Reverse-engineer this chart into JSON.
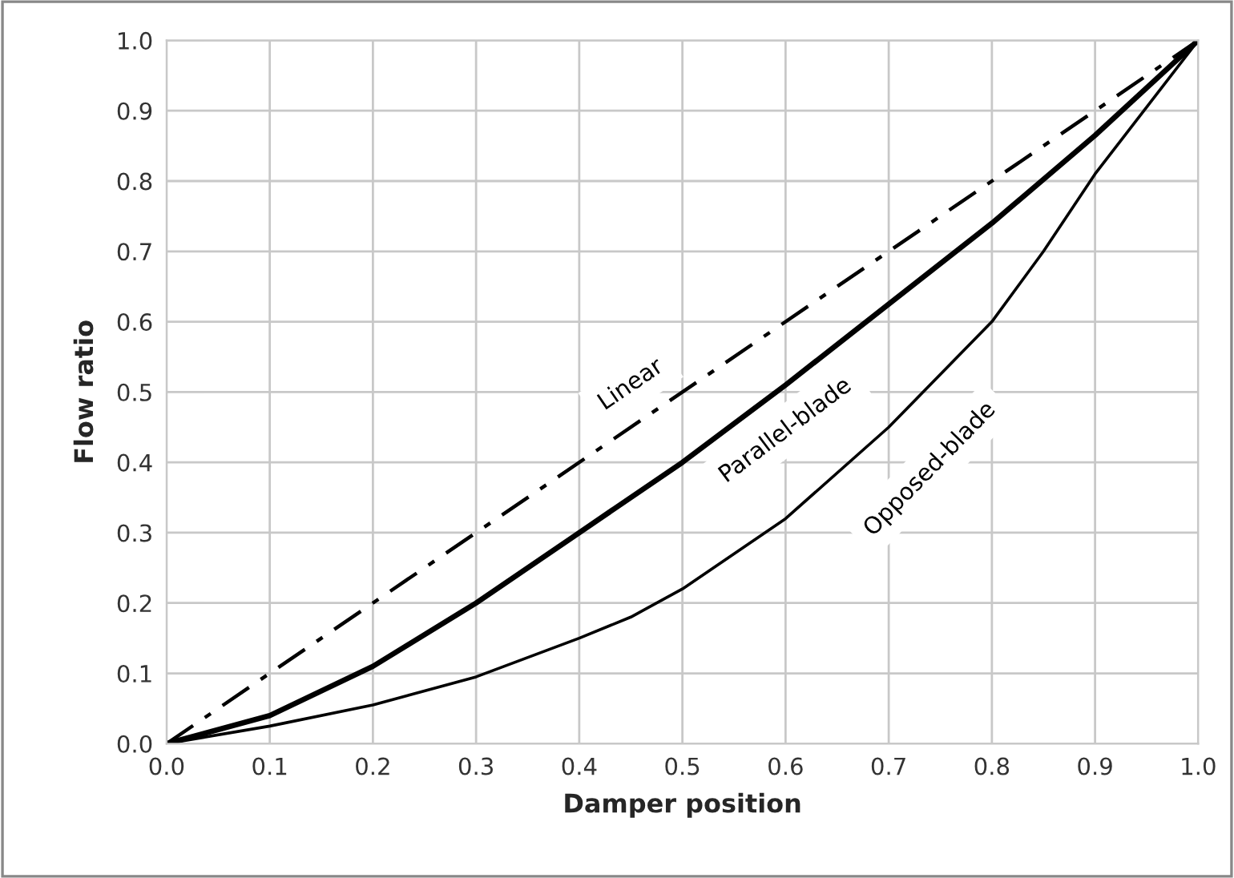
{
  "chart_data": {
    "type": "line",
    "xlabel": "Damper position",
    "ylabel": "Flow ratio",
    "xlim": [
      0.0,
      1.0
    ],
    "ylim": [
      0.0,
      1.0
    ],
    "xticks": [
      {
        "value": 0.0,
        "label": "0.0"
      },
      0.1,
      0.2,
      0.3,
      0.4,
      0.5,
      0.6,
      0.7,
      0.8,
      0.9,
      {
        "value": 1.0,
        "label": "1.0"
      }
    ],
    "yticks": [
      {
        "value": 0.0,
        "label": "0.0"
      },
      0.1,
      0.2,
      0.3,
      0.4,
      0.5,
      0.6,
      0.7,
      0.8,
      0.9,
      {
        "value": 1.0,
        "label": "1.0"
      }
    ],
    "grid": true,
    "legend": false,
    "marker": "none",
    "series": [
      {
        "name": "Linear",
        "color": "#000000",
        "line_style": "dashed",
        "x": [
          0.0,
          1.0
        ],
        "values": [
          0.0,
          1.0
        ]
      },
      {
        "name": "Parallel-blade",
        "color": "#000000",
        "line_style": "solid",
        "x": [
          0.0,
          0.1,
          0.2,
          0.3,
          0.4,
          0.5,
          0.6,
          0.7,
          0.8,
          0.9,
          1.0
        ],
        "values": [
          0.0,
          0.04,
          0.11,
          0.2,
          0.3,
          0.4,
          0.51,
          0.625,
          0.74,
          0.865,
          1.0
        ]
      },
      {
        "name": "Opposed-blade",
        "color": "#000000",
        "line_style": "solid",
        "x": [
          0.0,
          0.1,
          0.2,
          0.3,
          0.4,
          0.45,
          0.5,
          0.6,
          0.7,
          0.8,
          0.85,
          0.9,
          1.0
        ],
        "values": [
          0.0,
          0.025,
          0.055,
          0.095,
          0.15,
          0.18,
          0.22,
          0.32,
          0.45,
          0.6,
          0.7,
          0.81,
          1.0
        ]
      }
    ]
  }
}
